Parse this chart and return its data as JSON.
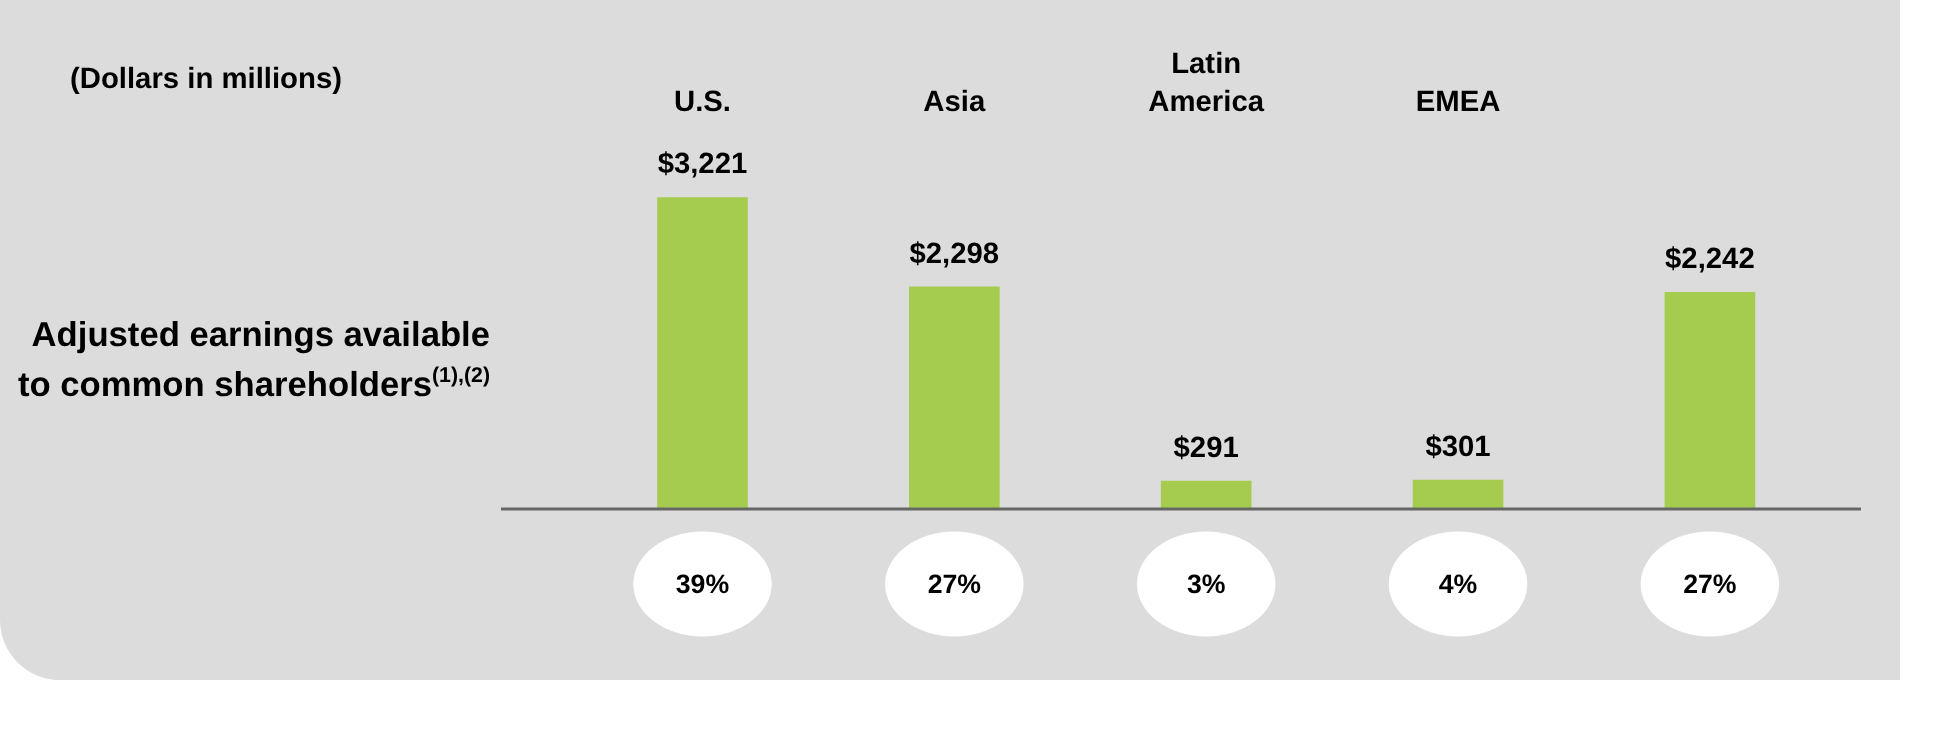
{
  "chart_data": {
    "type": "bar",
    "title": "(Dollars in millions)",
    "ylabel": "Adjusted earnings available to common shareholders$^{(1),(2)}$",
    "categories": [
      "U.S.",
      "Asia",
      "Latin America",
      "EMEA",
      null
    ],
    "values": [
      3221,
      2298,
      291,
      301,
      2242
    ],
    "value_labels": [
      "$3,221",
      "$2,298",
      "$291",
      "$301",
      "$2,242"
    ],
    "color": "#a5cc4f",
    "annotations": [
      "39%",
      "27%",
      "3%",
      "4%",
      "27%"
    ],
    "grid": false
  }
}
